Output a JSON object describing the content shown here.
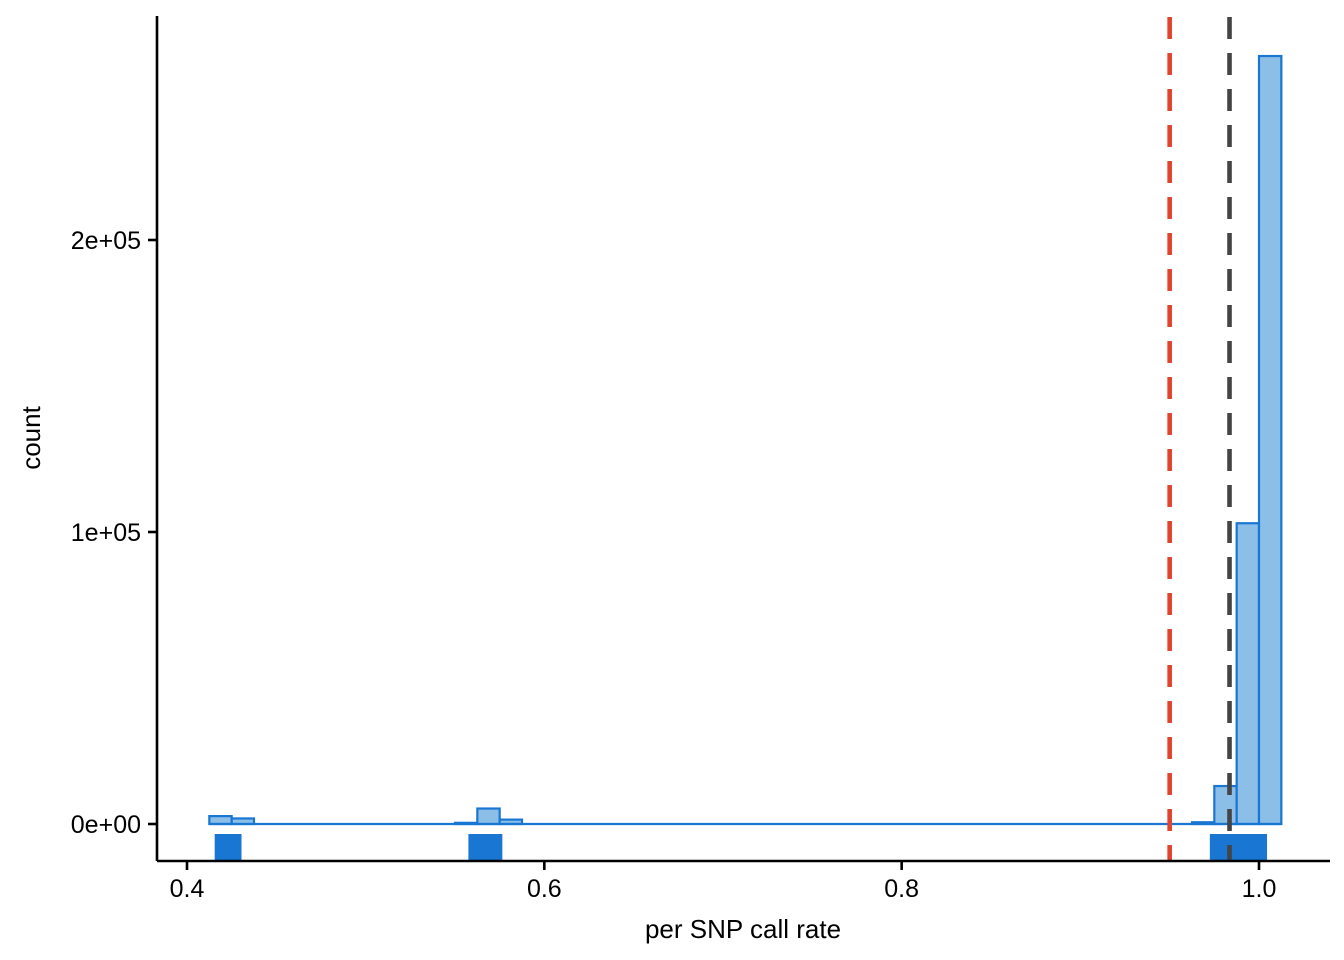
{
  "chart_data": {
    "type": "histogram",
    "title": "",
    "xlabel": "per SNP call rate",
    "ylabel": "count",
    "xlim": [
      0.4,
      1.02
    ],
    "ylim": [
      0,
      265000
    ],
    "bin_width": 0.0125,
    "x_ticks": [
      {
        "value": 0.4,
        "label": "0.4"
      },
      {
        "value": 0.6,
        "label": "0.6"
      },
      {
        "value": 0.8,
        "label": "0.8"
      },
      {
        "value": 1.0,
        "label": "1.0"
      }
    ],
    "y_ticks": [
      {
        "value": 0,
        "label": "0e+00"
      },
      {
        "value": 100000,
        "label": "1e+05"
      },
      {
        "value": 200000,
        "label": "2e+05"
      }
    ],
    "bins": [
      {
        "x0": 0.4125,
        "x1": 0.425,
        "count": 2700
      },
      {
        "x0": 0.425,
        "x1": 0.4375,
        "count": 1900
      },
      {
        "x0": 0.55,
        "x1": 0.5625,
        "count": 400
      },
      {
        "x0": 0.5625,
        "x1": 0.575,
        "count": 5300
      },
      {
        "x0": 0.575,
        "x1": 0.5875,
        "count": 1500
      },
      {
        "x0": 0.9625,
        "x1": 0.975,
        "count": 600
      },
      {
        "x0": 0.975,
        "x1": 0.9875,
        "count": 13000
      },
      {
        "x0": 0.9875,
        "x1": 1.0,
        "count": 103000
      },
      {
        "x0": 1.0,
        "x1": 1.0125,
        "count": 263000
      }
    ],
    "baseline": {
      "x0": 0.4125,
      "x1": 1.0125,
      "color": "#1976D2"
    },
    "rug_segments": [
      {
        "x0": 0.4155,
        "x1": 0.4305
      },
      {
        "x0": 0.5575,
        "x1": 0.5765
      },
      {
        "x0": 0.9725,
        "x1": 1.0045
      }
    ],
    "reference_lines": [
      {
        "name": "threshold-red",
        "x": 0.95,
        "color": "#E0442E"
      },
      {
        "name": "threshold-dark",
        "x": 0.9835,
        "color": "#444444"
      }
    ],
    "colors": {
      "bar_fill": "#8CBFE8",
      "bar_stroke": "#1976D2",
      "rug": "#1976D2",
      "axis": "#000000"
    }
  }
}
